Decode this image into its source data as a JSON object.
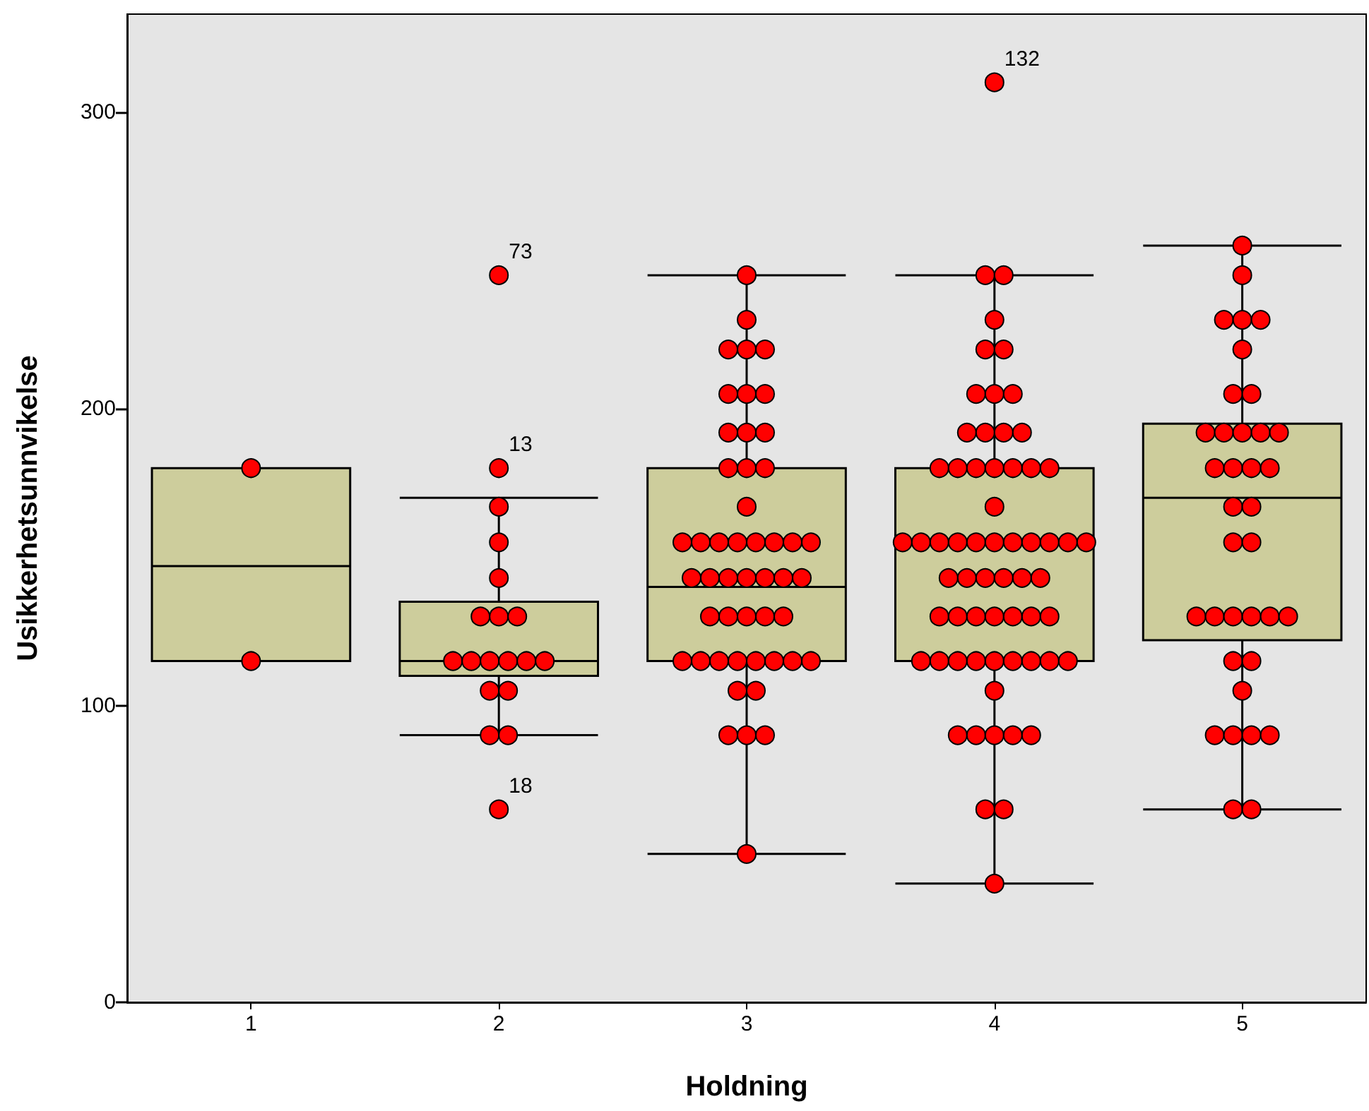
{
  "chart_data": {
    "type": "box",
    "xlabel": "Holdning",
    "ylabel": "Usikkerhetsunnvikelse",
    "categories": [
      "1",
      "2",
      "3",
      "4",
      "5"
    ],
    "ylim": [
      0,
      333
    ],
    "yticks": [
      0,
      100,
      200,
      300
    ],
    "color": "#cdcd9c",
    "boxes": [
      {
        "low": 115,
        "q1": 115,
        "median": 147,
        "q3": 180,
        "high": 180
      },
      {
        "low": 90,
        "q1": 110,
        "median": 115,
        "q3": 135,
        "high": 170
      },
      {
        "low": 50,
        "q1": 115,
        "median": 140,
        "q3": 180,
        "high": 245
      },
      {
        "low": 40,
        "q1": 115,
        "median": 155,
        "q3": 180,
        "high": 245
      },
      {
        "low": 65,
        "q1": 122,
        "median": 170,
        "q3": 195,
        "high": 255
      }
    ],
    "series": [
      {
        "type": "scatter",
        "color": "#ff0000",
        "marker": "circle",
        "x": [
          "1",
          "1",
          "2",
          "2",
          "2",
          "2",
          "2",
          "2",
          "2",
          "2",
          "2",
          "2",
          "2",
          "2",
          "2",
          "2",
          "2",
          "2",
          "2",
          "2",
          "2",
          "3",
          "3",
          "3",
          "3",
          "3",
          "3",
          "3",
          "3",
          "3",
          "3",
          "3",
          "3",
          "3",
          "3",
          "3",
          "3",
          "3",
          "3",
          "3",
          "3",
          "3",
          "3",
          "3",
          "3",
          "3",
          "3",
          "3",
          "3",
          "3",
          "3",
          "3",
          "3",
          "3",
          "3",
          "3",
          "3",
          "3",
          "3",
          "3",
          "3",
          "3",
          "3",
          "3",
          "3",
          "3",
          "3",
          "3",
          "3",
          "3",
          "4",
          "4",
          "4",
          "4",
          "4",
          "4",
          "4",
          "4",
          "4",
          "4",
          "4",
          "4",
          "4",
          "4",
          "4",
          "4",
          "4",
          "4",
          "4",
          "4",
          "4",
          "4",
          "4",
          "4",
          "4",
          "4",
          "4",
          "4",
          "4",
          "4",
          "4",
          "4",
          "4",
          "4",
          "4",
          "4",
          "4",
          "4",
          "4",
          "4",
          "4",
          "4",
          "4",
          "4",
          "4",
          "4",
          "4",
          "4",
          "4",
          "4",
          "4",
          "4",
          "4",
          "4",
          "4",
          "4",
          "4",
          "4",
          "4",
          "4",
          "4",
          "4",
          "4",
          "5",
          "5",
          "5",
          "5",
          "5",
          "5",
          "5",
          "5",
          "5",
          "5",
          "5",
          "5",
          "5",
          "5",
          "5",
          "5",
          "5",
          "5",
          "5",
          "5",
          "5",
          "5",
          "5",
          "5",
          "5",
          "5",
          "5",
          "5",
          "5",
          "5",
          "5",
          "5",
          "5",
          "5",
          "5",
          "5"
        ],
        "values": [
          180,
          115,
          245,
          180,
          167,
          155,
          143,
          130,
          130,
          130,
          115,
          115,
          115,
          115,
          115,
          115,
          105,
          105,
          90,
          90,
          65,
          245,
          230,
          220,
          220,
          220,
          205,
          205,
          205,
          192,
          192,
          192,
          180,
          180,
          180,
          167,
          155,
          155,
          155,
          155,
          155,
          155,
          155,
          155,
          143,
          143,
          143,
          143,
          143,
          143,
          143,
          130,
          130,
          130,
          130,
          130,
          115,
          115,
          115,
          115,
          115,
          115,
          115,
          115,
          105,
          105,
          90,
          90,
          90,
          50,
          310,
          245,
          245,
          230,
          220,
          220,
          205,
          205,
          205,
          192,
          192,
          192,
          192,
          180,
          180,
          180,
          180,
          180,
          180,
          180,
          167,
          155,
          155,
          155,
          155,
          155,
          155,
          155,
          155,
          155,
          155,
          155,
          143,
          143,
          143,
          143,
          143,
          143,
          130,
          130,
          130,
          130,
          130,
          130,
          130,
          115,
          115,
          115,
          115,
          115,
          115,
          115,
          115,
          115,
          105,
          90,
          90,
          90,
          90,
          90,
          65,
          65,
          40,
          255,
          245,
          230,
          230,
          230,
          220,
          205,
          205,
          192,
          192,
          192,
          192,
          192,
          180,
          180,
          180,
          180,
          167,
          167,
          155,
          155,
          130,
          130,
          130,
          130,
          130,
          130,
          115,
          115,
          105,
          90,
          90,
          90,
          90,
          65,
          65
        ]
      }
    ],
    "annotations": [
      {
        "text": "73",
        "x": "2",
        "y": 245
      },
      {
        "text": "13",
        "x": "2",
        "y": 180
      },
      {
        "text": "18",
        "x": "2",
        "y": 65
      },
      {
        "text": "132",
        "x": "4",
        "y": 310
      }
    ]
  }
}
